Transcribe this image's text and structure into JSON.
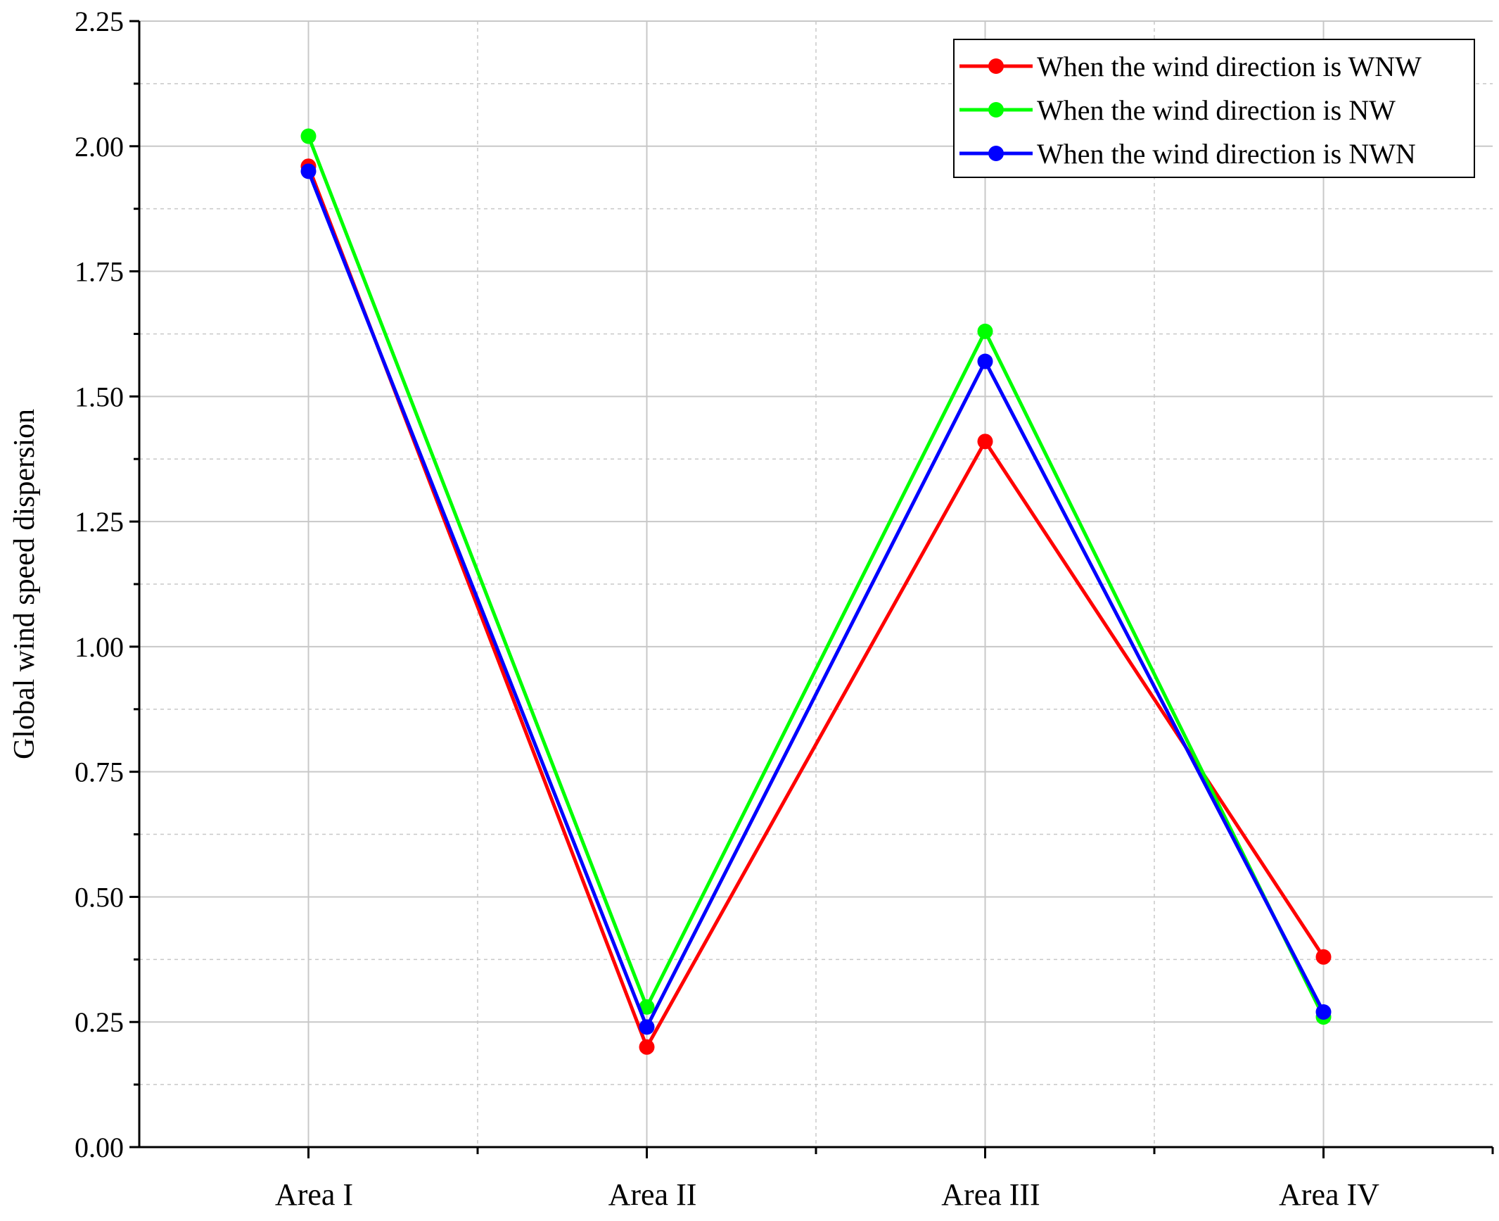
{
  "chart_data": {
    "type": "line",
    "title": "",
    "xlabel": "",
    "ylabel": "Global wind speed dispersion",
    "categories": [
      "Area I",
      "Area II",
      "Area III",
      "Area  IV"
    ],
    "ylim": [
      0,
      2.25
    ],
    "yticks": [
      "0.00",
      "0.25",
      "0.50",
      "0.75",
      "1.00",
      "1.25",
      "1.50",
      "1.75",
      "2.00",
      "2.25"
    ],
    "grid": true,
    "legend_position": "top-right",
    "series": [
      {
        "name": "When the wind direction is WNW",
        "color": "#ff0000",
        "values": [
          1.96,
          0.2,
          1.41,
          0.38
        ]
      },
      {
        "name": "When the wind direction is NW",
        "color": "#00ff00",
        "values": [
          2.02,
          0.28,
          1.63,
          0.26
        ]
      },
      {
        "name": "When the wind direction is NWN",
        "color": "#0000ff",
        "values": [
          1.95,
          0.24,
          1.57,
          0.27
        ]
      }
    ]
  }
}
